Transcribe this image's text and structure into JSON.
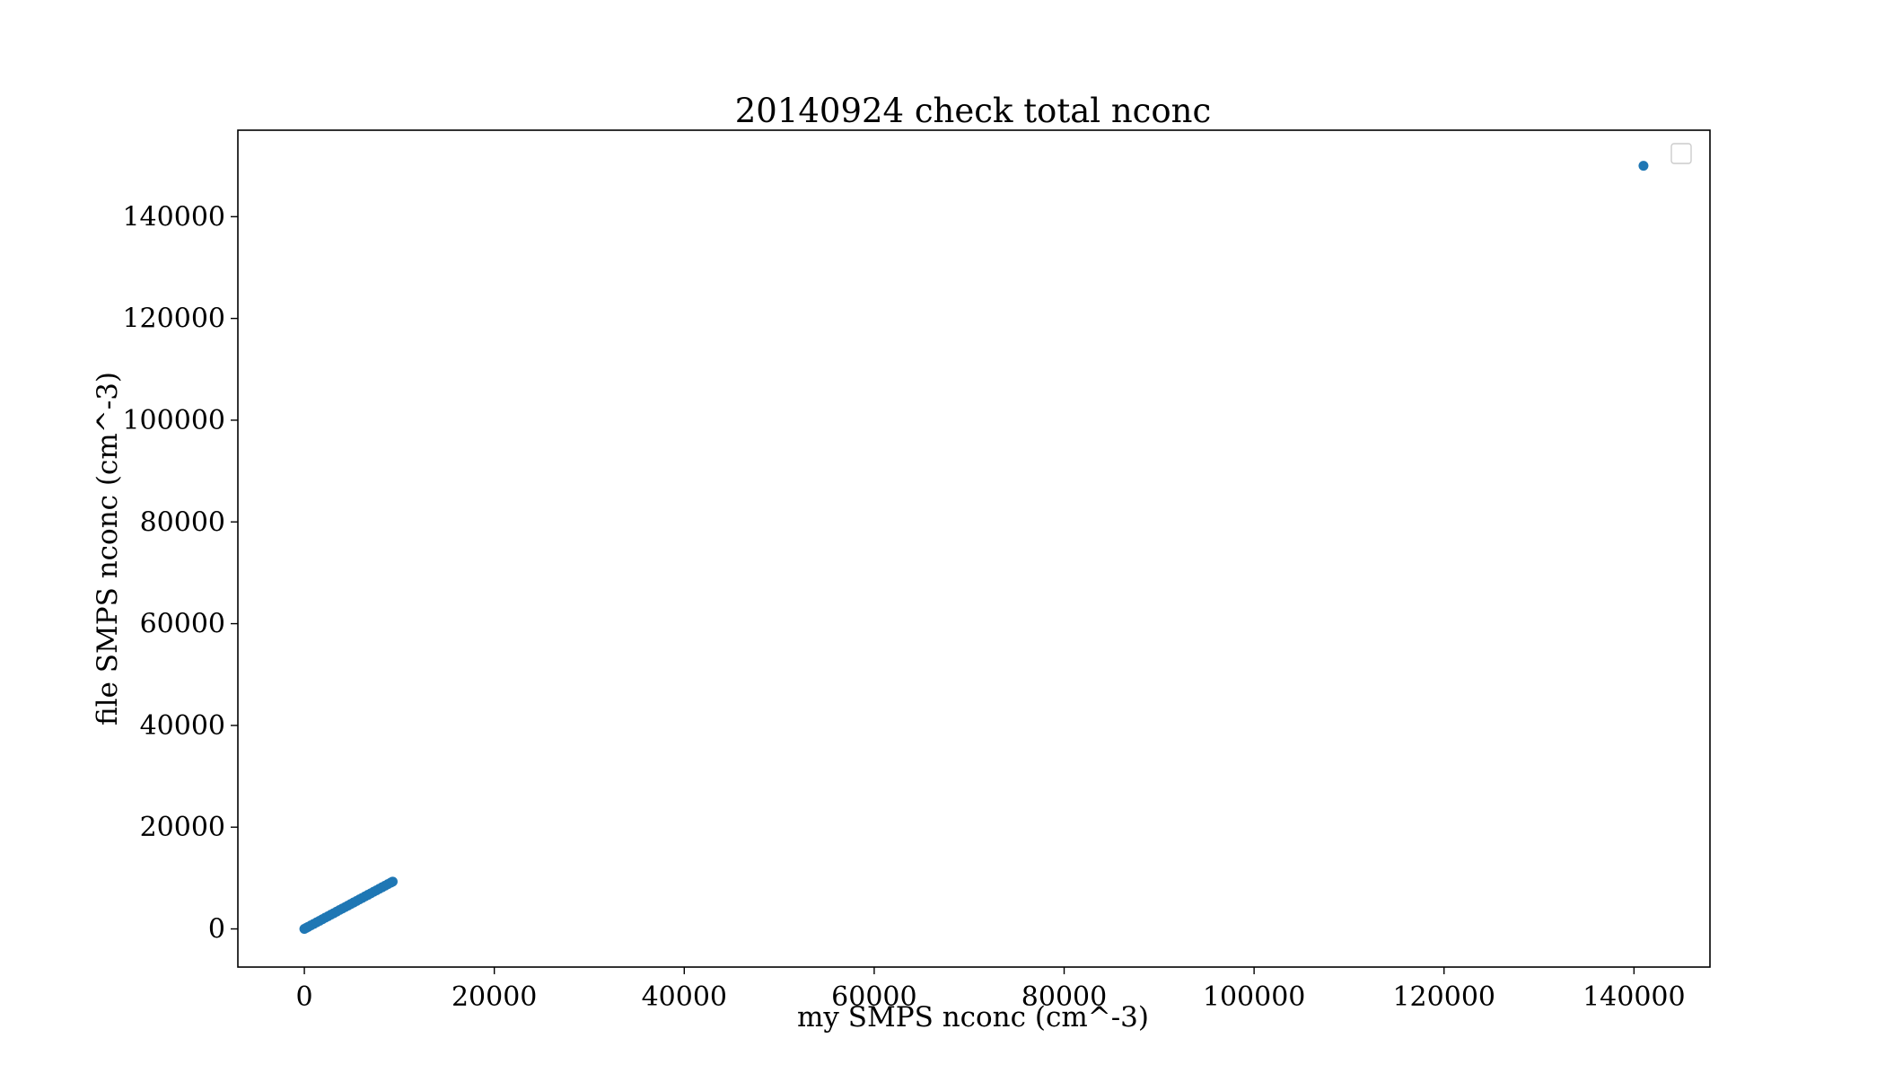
{
  "chart_data": {
    "type": "scatter",
    "title": "20140924 check total nconc",
    "xlabel": "my SMPS nconc (cm^-3)",
    "ylabel": "file SMPS nconc (cm^-3)",
    "xlim": [
      -7000,
      148000
    ],
    "ylim": [
      -7500,
      157000
    ],
    "xticks": [
      0,
      20000,
      40000,
      60000,
      80000,
      100000,
      120000,
      140000
    ],
    "yticks": [
      0,
      20000,
      40000,
      60000,
      80000,
      100000,
      120000,
      140000
    ],
    "grid": false,
    "legend": {
      "placement": "upper right",
      "entries": []
    },
    "series": [
      {
        "color": "#1f77b4",
        "x": [
          0,
          200,
          400,
          700,
          1000,
          1300,
          1600,
          1900,
          2200,
          2500,
          2800,
          3100,
          3400,
          3700,
          4000,
          4300,
          4600,
          4900,
          5200,
          5500,
          5800,
          6100,
          6400,
          6700,
          7000,
          7300,
          7600,
          7900,
          8200,
          8500,
          8800,
          9100,
          9300,
          141000
        ],
        "y": [
          0,
          200,
          400,
          700,
          1000,
          1300,
          1600,
          1900,
          2200,
          2500,
          2800,
          3100,
          3400,
          3700,
          4000,
          4300,
          4600,
          4900,
          5200,
          5500,
          5800,
          6100,
          6400,
          6700,
          7000,
          7300,
          7600,
          7900,
          8200,
          8500,
          8800,
          9100,
          9300,
          150000
        ]
      }
    ]
  }
}
